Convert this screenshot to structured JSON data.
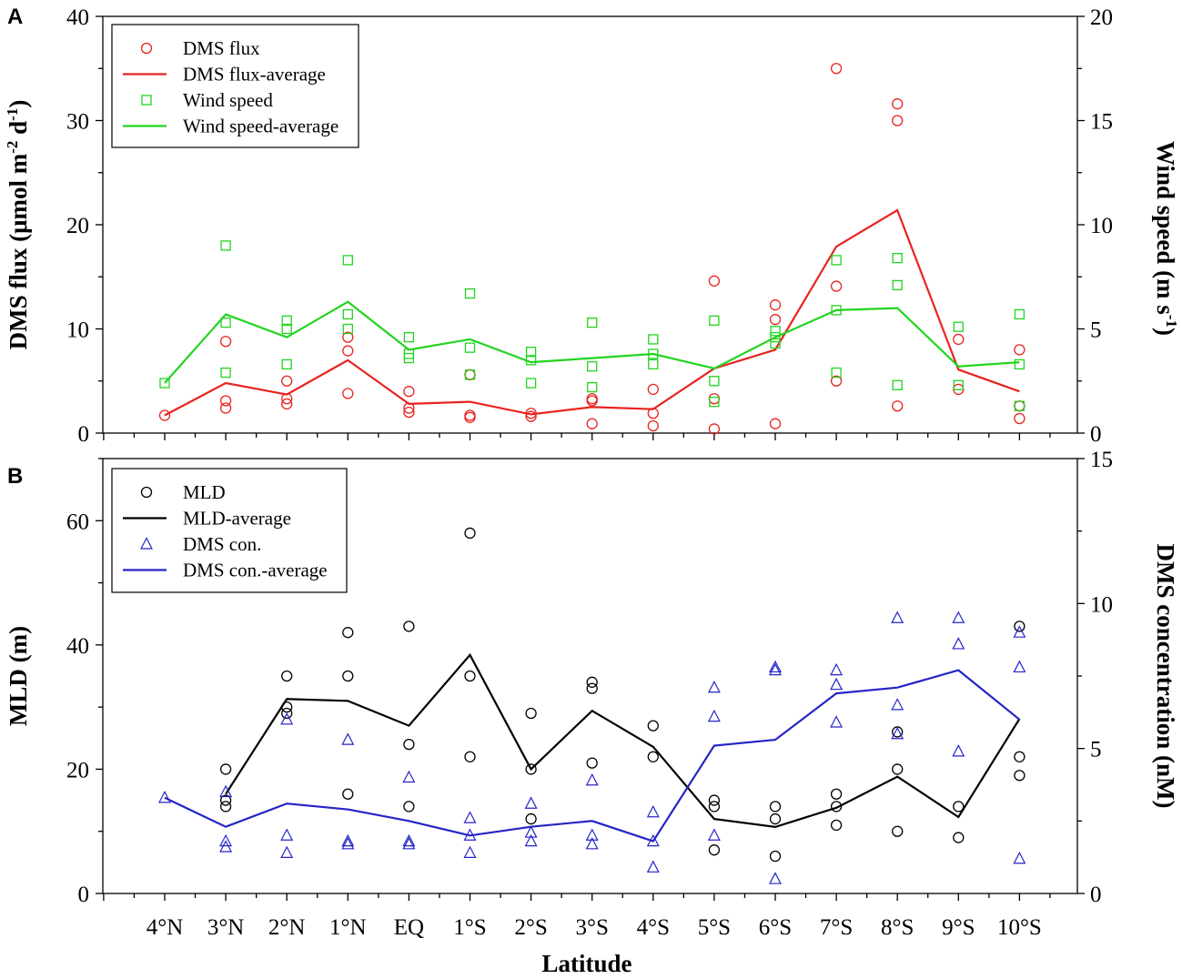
{
  "figure": {
    "panel_a_label": "A",
    "panel_b_label": "B",
    "xlabel": "Latitude"
  },
  "chart_data": [
    {
      "type": "scatter",
      "panel": "A",
      "categories": [
        "4°N",
        "3°N",
        "2°N",
        "1°N",
        "EQ",
        "1°S",
        "2°S",
        "3°S",
        "4°S",
        "5°S",
        "6°S",
        "7°S",
        "8°S",
        "9°S",
        "10°S"
      ],
      "xlabel": "Latitude",
      "ylabel": "DMS flux (μmol m-2 d-1)",
      "y2label": "Wind speed (m s-1)",
      "ylim": [
        0,
        40
      ],
      "y2lim": [
        0,
        20
      ],
      "yticks": [
        0,
        10,
        20,
        30,
        40
      ],
      "y2ticks": [
        0,
        5,
        10,
        15,
        20
      ],
      "legend": {
        "position": "top-left",
        "entries": [
          "DMS flux",
          "DMS flux-average",
          "Wind speed",
          "Wind speed-average"
        ]
      },
      "series": [
        {
          "name": "DMS flux",
          "axis": "left",
          "marker": "circle",
          "color": "#e8231f",
          "points": [
            [
              0,
              1.7
            ],
            [
              1,
              8.8
            ],
            [
              1,
              3.1
            ],
            [
              1,
              2.4
            ],
            [
              2,
              5.0
            ],
            [
              2,
              3.3
            ],
            [
              2,
              2.8
            ],
            [
              3,
              9.2
            ],
            [
              3,
              7.9
            ],
            [
              3,
              3.8
            ],
            [
              4,
              4.0
            ],
            [
              4,
              2.4
            ],
            [
              4,
              2.0
            ],
            [
              5,
              5.6
            ],
            [
              5,
              1.7
            ],
            [
              5,
              1.5
            ],
            [
              6,
              1.9
            ],
            [
              6,
              1.6
            ],
            [
              7,
              3.3
            ],
            [
              7,
              3.1
            ],
            [
              7,
              0.9
            ],
            [
              8,
              4.2
            ],
            [
              8,
              1.9
            ],
            [
              8,
              0.7
            ],
            [
              9,
              14.6
            ],
            [
              9,
              3.3
            ],
            [
              9,
              0.4
            ],
            [
              10,
              12.3
            ],
            [
              10,
              10.9
            ],
            [
              10,
              0.9
            ],
            [
              11,
              35.0
            ],
            [
              11,
              14.1
            ],
            [
              11,
              5.0
            ],
            [
              12,
              31.6
            ],
            [
              12,
              30.0
            ],
            [
              12,
              2.6
            ],
            [
              13,
              9.0
            ],
            [
              13,
              4.2
            ],
            [
              14,
              8.0
            ],
            [
              14,
              2.6
            ],
            [
              14,
              1.4
            ]
          ]
        },
        {
          "name": "DMS flux-average",
          "axis": "left",
          "line": true,
          "color": "#e8231f",
          "values": [
            1.7,
            4.8,
            3.7,
            7.0,
            2.8,
            3.0,
            1.8,
            2.5,
            2.3,
            6.2,
            8.0,
            17.9,
            21.4,
            6.1,
            4.0
          ]
        },
        {
          "name": "Wind speed",
          "axis": "right",
          "marker": "square",
          "color": "#22d41f",
          "points": [
            [
              0,
              2.4
            ],
            [
              1,
              9.0
            ],
            [
              1,
              5.3
            ],
            [
              1,
              2.9
            ],
            [
              2,
              5.4
            ],
            [
              2,
              5.0
            ],
            [
              2,
              3.3
            ],
            [
              3,
              8.3
            ],
            [
              3,
              5.7
            ],
            [
              3,
              5.0
            ],
            [
              4,
              4.6
            ],
            [
              4,
              3.8
            ],
            [
              4,
              3.6
            ],
            [
              5,
              6.7
            ],
            [
              5,
              4.1
            ],
            [
              5,
              2.8
            ],
            [
              6,
              3.9
            ],
            [
              6,
              3.5
            ],
            [
              6,
              2.4
            ],
            [
              7,
              5.3
            ],
            [
              7,
              3.2
            ],
            [
              7,
              2.2
            ],
            [
              8,
              4.5
            ],
            [
              8,
              3.8
            ],
            [
              8,
              3.3
            ],
            [
              9,
              5.4
            ],
            [
              9,
              2.5
            ],
            [
              9,
              1.5
            ],
            [
              10,
              4.9
            ],
            [
              10,
              4.6
            ],
            [
              10,
              4.3
            ],
            [
              11,
              8.3
            ],
            [
              11,
              5.9
            ],
            [
              11,
              2.9
            ],
            [
              12,
              8.4
            ],
            [
              12,
              7.1
            ],
            [
              12,
              2.3
            ],
            [
              13,
              5.1
            ],
            [
              13,
              2.3
            ],
            [
              14,
              5.7
            ],
            [
              14,
              3.3
            ],
            [
              14,
              1.3
            ]
          ]
        },
        {
          "name": "Wind speed-average",
          "axis": "right",
          "line": true,
          "color": "#22d41f",
          "values": [
            2.4,
            5.7,
            4.6,
            6.3,
            4.0,
            4.5,
            3.4,
            3.6,
            3.8,
            3.1,
            4.6,
            5.9,
            6.0,
            3.2,
            3.4
          ]
        }
      ]
    },
    {
      "type": "scatter",
      "panel": "B",
      "categories": [
        "4°N",
        "3°N",
        "2°N",
        "1°N",
        "EQ",
        "1°S",
        "2°S",
        "3°S",
        "4°S",
        "5°S",
        "6°S",
        "7°S",
        "8°S",
        "9°S",
        "10°S"
      ],
      "xlabel": "Latitude",
      "ylabel": "MLD (m)",
      "y2label": "DMS concentration (nM)",
      "ylim": [
        0,
        70
      ],
      "y2lim": [
        0,
        15
      ],
      "yticks": [
        0,
        20,
        40,
        60
      ],
      "y2ticks": [
        0,
        5,
        10,
        15
      ],
      "legend": {
        "position": "top-left",
        "entries": [
          "MLD",
          "MLD-average",
          "DMS con.",
          "DMS con.-average"
        ]
      },
      "series": [
        {
          "name": "MLD",
          "axis": "left",
          "marker": "circle",
          "color": "#000000",
          "points": [
            [
              1,
              20
            ],
            [
              1,
              15
            ],
            [
              1,
              14
            ],
            [
              2,
              35
            ],
            [
              2,
              30
            ],
            [
              2,
              29
            ],
            [
              3,
              42
            ],
            [
              3,
              35
            ],
            [
              3,
              16
            ],
            [
              4,
              43
            ],
            [
              4,
              24
            ],
            [
              4,
              14
            ],
            [
              5,
              58
            ],
            [
              5,
              35
            ],
            [
              5,
              22
            ],
            [
              6,
              29
            ],
            [
              6,
              20
            ],
            [
              6,
              12
            ],
            [
              7,
              34
            ],
            [
              7,
              33
            ],
            [
              7,
              21
            ],
            [
              8,
              27
            ],
            [
              8,
              22
            ],
            [
              9,
              15
            ],
            [
              9,
              14
            ],
            [
              9,
              7
            ],
            [
              10,
              14
            ],
            [
              10,
              12
            ],
            [
              10,
              6
            ],
            [
              11,
              16
            ],
            [
              11,
              14
            ],
            [
              11,
              11
            ],
            [
              12,
              26
            ],
            [
              12,
              20
            ],
            [
              12,
              10
            ],
            [
              13,
              14
            ],
            [
              13,
              9
            ],
            [
              14,
              43
            ],
            [
              14,
              22
            ],
            [
              14,
              19
            ]
          ]
        },
        {
          "name": "MLD-average",
          "axis": "left",
          "line": true,
          "color": "#000000",
          "values": [
            null,
            16,
            31.3,
            31,
            27,
            38.4,
            20,
            29.4,
            23.6,
            12,
            10.7,
            13.8,
            18.8,
            12.3,
            28.1
          ]
        },
        {
          "name": "DMS con.",
          "axis": "right",
          "marker": "triangle",
          "color": "#2424c8",
          "points": [
            [
              0,
              3.3
            ],
            [
              1,
              3.5
            ],
            [
              1,
              1.8
            ],
            [
              1,
              1.6
            ],
            [
              2,
              6.0
            ],
            [
              2,
              2.0
            ],
            [
              2,
              1.4
            ],
            [
              3,
              5.3
            ],
            [
              3,
              1.8
            ],
            [
              3,
              1.7
            ],
            [
              4,
              4.0
            ],
            [
              4,
              1.8
            ],
            [
              4,
              1.7
            ],
            [
              5,
              2.6
            ],
            [
              5,
              2.0
            ],
            [
              5,
              1.4
            ],
            [
              6,
              3.1
            ],
            [
              6,
              2.1
            ],
            [
              6,
              1.8
            ],
            [
              7,
              3.9
            ],
            [
              7,
              2.0
            ],
            [
              7,
              1.7
            ],
            [
              8,
              2.8
            ],
            [
              8,
              1.8
            ],
            [
              8,
              0.9
            ],
            [
              9,
              7.1
            ],
            [
              9,
              6.1
            ],
            [
              9,
              2.0
            ],
            [
              10,
              7.8
            ],
            [
              10,
              7.7
            ],
            [
              10,
              0.5
            ],
            [
              11,
              7.7
            ],
            [
              11,
              7.2
            ],
            [
              11,
              5.9
            ],
            [
              12,
              9.5
            ],
            [
              12,
              6.5
            ],
            [
              12,
              5.5
            ],
            [
              13,
              9.5
            ],
            [
              13,
              8.6
            ],
            [
              13,
              4.9
            ],
            [
              14,
              9.0
            ],
            [
              14,
              7.8
            ],
            [
              14,
              1.2
            ]
          ]
        },
        {
          "name": "DMS con.-average",
          "axis": "right",
          "line": true,
          "color": "#2424c8",
          "values": [
            3.3,
            2.3,
            3.1,
            2.9,
            2.5,
            2.0,
            2.3,
            2.5,
            1.8,
            5.1,
            5.3,
            6.9,
            7.1,
            7.7,
            6.0
          ]
        }
      ]
    }
  ]
}
